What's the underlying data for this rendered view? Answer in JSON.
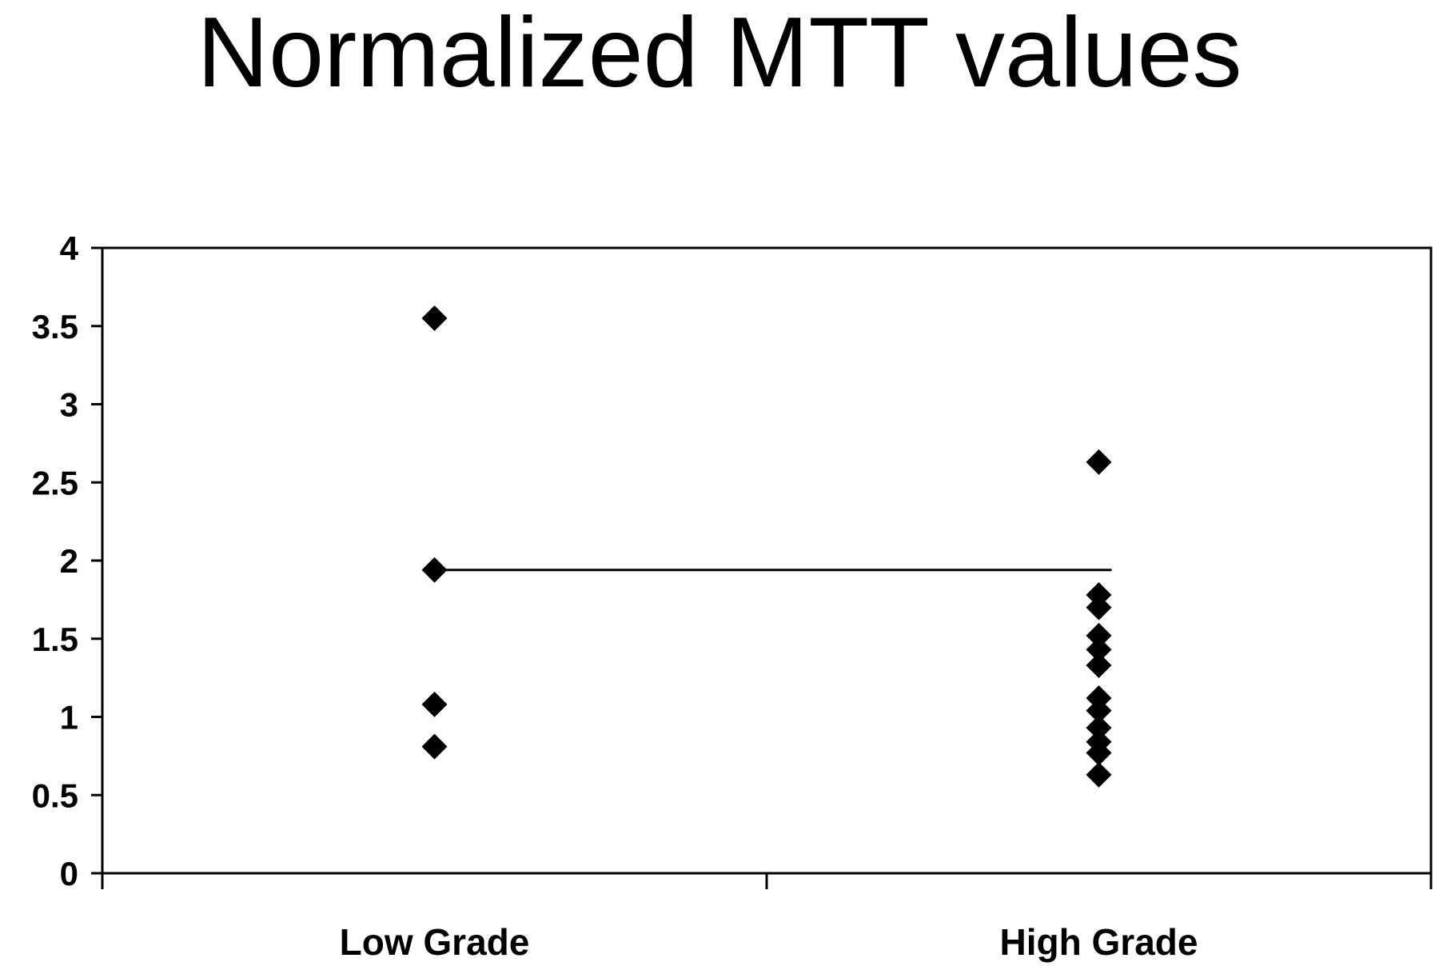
{
  "chart_data": {
    "type": "scatter",
    "title": "Normalized MTT values",
    "xlabel": "",
    "ylabel": "",
    "categories": [
      "Low Grade",
      "High Grade"
    ],
    "yticks": [
      "0",
      "0.5",
      "1",
      "1.5",
      "2",
      "2.5",
      "3",
      "3.5",
      "4"
    ],
    "ylim": [
      0,
      4
    ],
    "grid": false,
    "legend": "none",
    "marker": "diamond",
    "marker_color": "#000000",
    "series": [
      {
        "category": "Low Grade",
        "values": [
          3.55,
          1.94,
          1.08,
          0.81
        ]
      },
      {
        "category": "High Grade",
        "values": [
          2.63,
          1.78,
          1.7,
          1.52,
          1.43,
          1.33,
          1.12,
          1.04,
          0.93,
          0.84,
          0.77,
          0.63
        ]
      }
    ],
    "reference_line": {
      "value": 1.94,
      "from_category": "Low Grade",
      "to_category": "High Grade"
    }
  }
}
